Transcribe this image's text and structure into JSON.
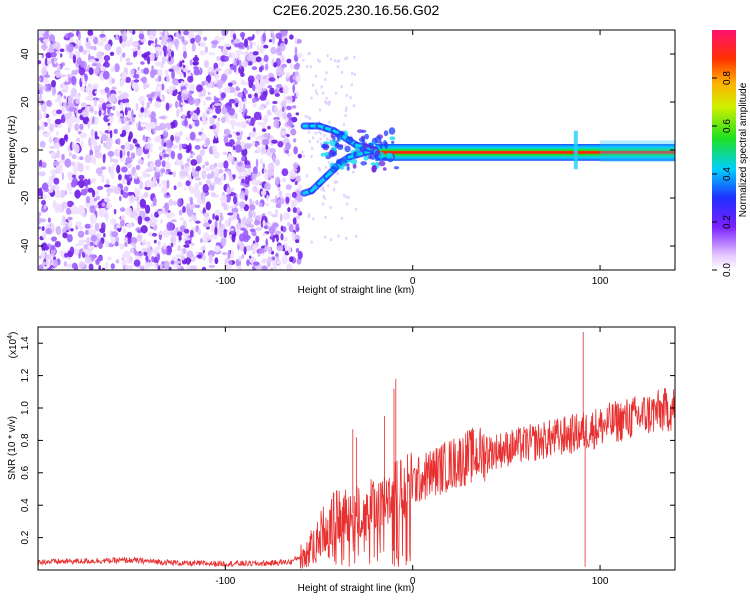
{
  "title": "C2E6.2025.230.16.56.G02",
  "chart_data": [
    {
      "type": "heatmap",
      "xlabel": "Height of straight line (km)",
      "ylabel": "Frequency (Hz)",
      "xlim": [
        -200,
        140
      ],
      "ylim": [
        -50,
        50
      ],
      "xticks": [
        -100,
        0,
        100
      ],
      "yticks": [
        -40,
        -20,
        0,
        20,
        40
      ],
      "colorbar": {
        "label": "Normalized spectral amplitude",
        "range": [
          0,
          1
        ],
        "ticks": [
          0.0,
          0.2,
          0.4,
          0.6,
          0.8
        ]
      },
      "noise_region_x": [
        -200,
        -60
      ],
      "signal_track": [
        {
          "x": -58,
          "f1": -18,
          "f2": 10
        },
        {
          "x": -54,
          "f1": -17,
          "f2": 10
        },
        {
          "x": -50,
          "f1": -14,
          "f2": 10
        },
        {
          "x": -46,
          "f1": -11,
          "f2": 9
        },
        {
          "x": -42,
          "f1": -8,
          "f2": 8
        },
        {
          "x": -38,
          "f1": -5,
          "f2": 6
        },
        {
          "x": -34,
          "f1": -3,
          "f2": 4
        },
        {
          "x": -30,
          "f1": -2,
          "f2": 2
        },
        {
          "x": -25,
          "f1": -1,
          "f2": 1
        },
        {
          "x": -20,
          "f1": 0,
          "f2": 0
        },
        {
          "x": -12,
          "f1": 0,
          "f2": 0
        },
        {
          "x": -4,
          "f1": -1,
          "f2": -1
        },
        {
          "x": 2,
          "f1": -2,
          "f2": -2
        },
        {
          "x": 10,
          "f1": -1,
          "f2": -1
        },
        {
          "x": 40,
          "f1": -1,
          "f2": -1
        },
        {
          "x": 90,
          "f1": -1,
          "f2": -1
        },
        {
          "x": 140,
          "f1": -1,
          "f2": -1
        }
      ]
    },
    {
      "type": "line",
      "xlabel": "Height of straight line (km)",
      "ylabel": "SNR (10 * v/v)",
      "scale_label": "(x10",
      "scale_exponent": "4",
      "scale_suffix": ")",
      "xlim": [
        -200,
        140
      ],
      "ylim": [
        0,
        1.5
      ],
      "xticks": [
        -100,
        0,
        100
      ],
      "yticks": [
        0.2,
        0.4,
        0.6,
        0.8,
        1.0,
        1.2,
        1.4
      ],
      "ytick_labels": [
        "0.2",
        "0.4",
        "0.6",
        "0.8",
        "1.0",
        "1.2",
        "1.4"
      ],
      "color": "#e83030",
      "envelope": [
        {
          "x": -200,
          "y": 0.05
        },
        {
          "x": -150,
          "y": 0.06
        },
        {
          "x": -120,
          "y": 0.04
        },
        {
          "x": -80,
          "y": 0.04
        },
        {
          "x": -65,
          "y": 0.05
        },
        {
          "x": -55,
          "y": 0.12
        },
        {
          "x": -45,
          "y": 0.3
        },
        {
          "x": -35,
          "y": 0.35
        },
        {
          "x": -25,
          "y": 0.35
        },
        {
          "x": -15,
          "y": 0.45
        },
        {
          "x": -5,
          "y": 0.5
        },
        {
          "x": 10,
          "y": 0.6
        },
        {
          "x": 30,
          "y": 0.7
        },
        {
          "x": 50,
          "y": 0.75
        },
        {
          "x": 70,
          "y": 0.8
        },
        {
          "x": 90,
          "y": 0.85
        },
        {
          "x": 110,
          "y": 0.92
        },
        {
          "x": 140,
          "y": 1.0
        }
      ],
      "spikes": [
        {
          "x": -32,
          "y": 0.87
        },
        {
          "x": -30,
          "y": 0.82
        },
        {
          "x": -15,
          "y": 0.95
        },
        {
          "x": -10,
          "y": 1.12
        },
        {
          "x": -9,
          "y": 1.18
        },
        {
          "x": 91,
          "y": 1.47
        },
        {
          "x": 92,
          "y": 0.02
        }
      ]
    }
  ]
}
